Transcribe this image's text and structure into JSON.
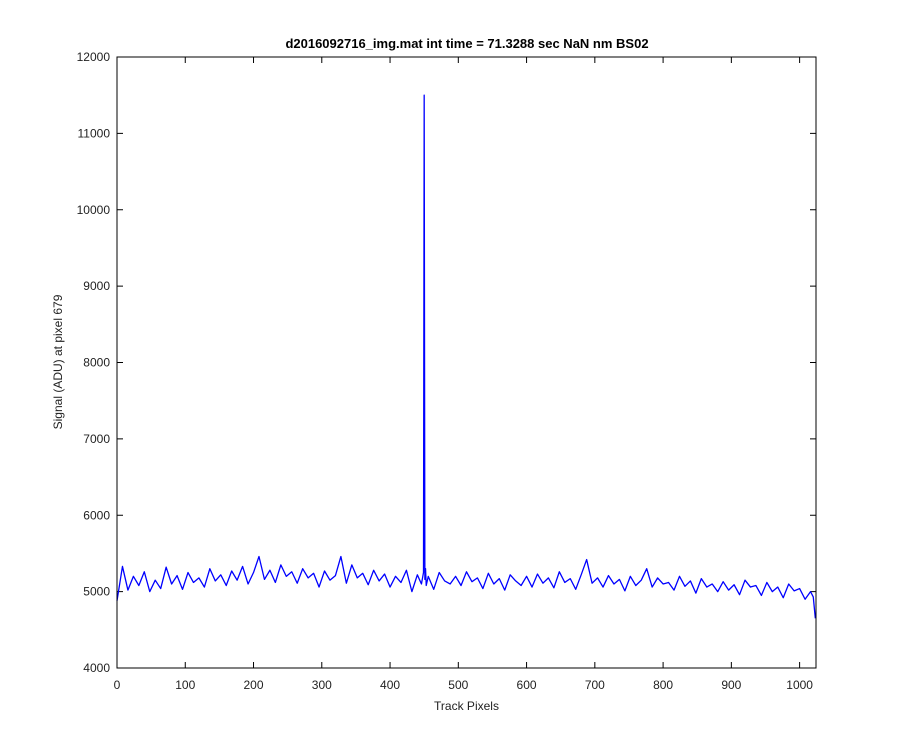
{
  "chart_data": {
    "type": "line",
    "title": "d2016092716_img.mat int time = 71.3288 sec  NaN nm BS02",
    "xlabel": "Track Pixels",
    "ylabel": "Signal (ADU) at pixel 679",
    "xlim": [
      0,
      1024
    ],
    "ylim": [
      4000,
      12000
    ],
    "xticks": [
      0,
      100,
      200,
      300,
      400,
      500,
      600,
      700,
      800,
      900,
      1000
    ],
    "yticks": [
      4000,
      5000,
      6000,
      7000,
      8000,
      9000,
      10000,
      11000,
      12000
    ],
    "xtick_labels": [
      "0",
      "100",
      "200",
      "300",
      "400",
      "500",
      "600",
      "700",
      "800",
      "900",
      "1000"
    ],
    "ytick_labels": [
      "4000",
      "5000",
      "6000",
      "7000",
      "8000",
      "9000",
      "10000",
      "11000",
      "12000"
    ],
    "grid": false,
    "line_color": "#0000ff",
    "series": [
      {
        "x": [
          0,
          8,
          16,
          24,
          32,
          40,
          48,
          56,
          64,
          72,
          80,
          88,
          96,
          104,
          112,
          120,
          128,
          136,
          144,
          152,
          160,
          168,
          176,
          184,
          192,
          200,
          208,
          216,
          224,
          232,
          240,
          248,
          256,
          264,
          272,
          280,
          288,
          296,
          304,
          312,
          320,
          328,
          336,
          344,
          352,
          360,
          368,
          376,
          384,
          392,
          400,
          408,
          416,
          424,
          432,
          440,
          446,
          449,
          450,
          451,
          452,
          453,
          456,
          464,
          472,
          480,
          488,
          496,
          504,
          512,
          520,
          528,
          536,
          544,
          552,
          560,
          568,
          576,
          584,
          592,
          600,
          608,
          616,
          624,
          632,
          640,
          648,
          656,
          664,
          672,
          680,
          688,
          696,
          704,
          712,
          720,
          728,
          736,
          744,
          752,
          760,
          768,
          776,
          784,
          792,
          800,
          808,
          816,
          824,
          832,
          840,
          848,
          856,
          864,
          872,
          880,
          888,
          896,
          904,
          912,
          920,
          928,
          936,
          944,
          952,
          960,
          968,
          976,
          984,
          992,
          1000,
          1008,
          1016,
          1020,
          1023
        ],
        "y": [
          4880,
          5330,
          5020,
          5200,
          5080,
          5260,
          5000,
          5150,
          5040,
          5320,
          5100,
          5210,
          5030,
          5250,
          5120,
          5180,
          5060,
          5300,
          5140,
          5220,
          5080,
          5270,
          5150,
          5330,
          5100,
          5250,
          5460,
          5160,
          5280,
          5120,
          5350,
          5200,
          5260,
          5110,
          5300,
          5180,
          5240,
          5060,
          5270,
          5150,
          5210,
          5460,
          5110,
          5350,
          5180,
          5240,
          5090,
          5280,
          5140,
          5230,
          5060,
          5200,
          5120,
          5280,
          5000,
          5220,
          5100,
          5250,
          11500,
          5160,
          5300,
          5080,
          5200,
          5030,
          5250,
          5140,
          5100,
          5200,
          5080,
          5260,
          5130,
          5180,
          5040,
          5240,
          5100,
          5170,
          5020,
          5220,
          5140,
          5080,
          5200,
          5060,
          5230,
          5110,
          5180,
          5050,
          5260,
          5120,
          5170,
          5030,
          5220,
          5420,
          5110,
          5180,
          5060,
          5210,
          5100,
          5160,
          5010,
          5200,
          5080,
          5150,
          5300,
          5060,
          5180,
          5100,
          5120,
          5020,
          5200,
          5070,
          5140,
          4980,
          5170,
          5060,
          5100,
          5000,
          5130,
          5020,
          5090,
          4960,
          5150,
          5060,
          5080,
          4950,
          5120,
          5000,
          5060,
          4920,
          5100,
          5010,
          5040,
          4900,
          5000,
          4930,
          4650
        ]
      }
    ]
  }
}
